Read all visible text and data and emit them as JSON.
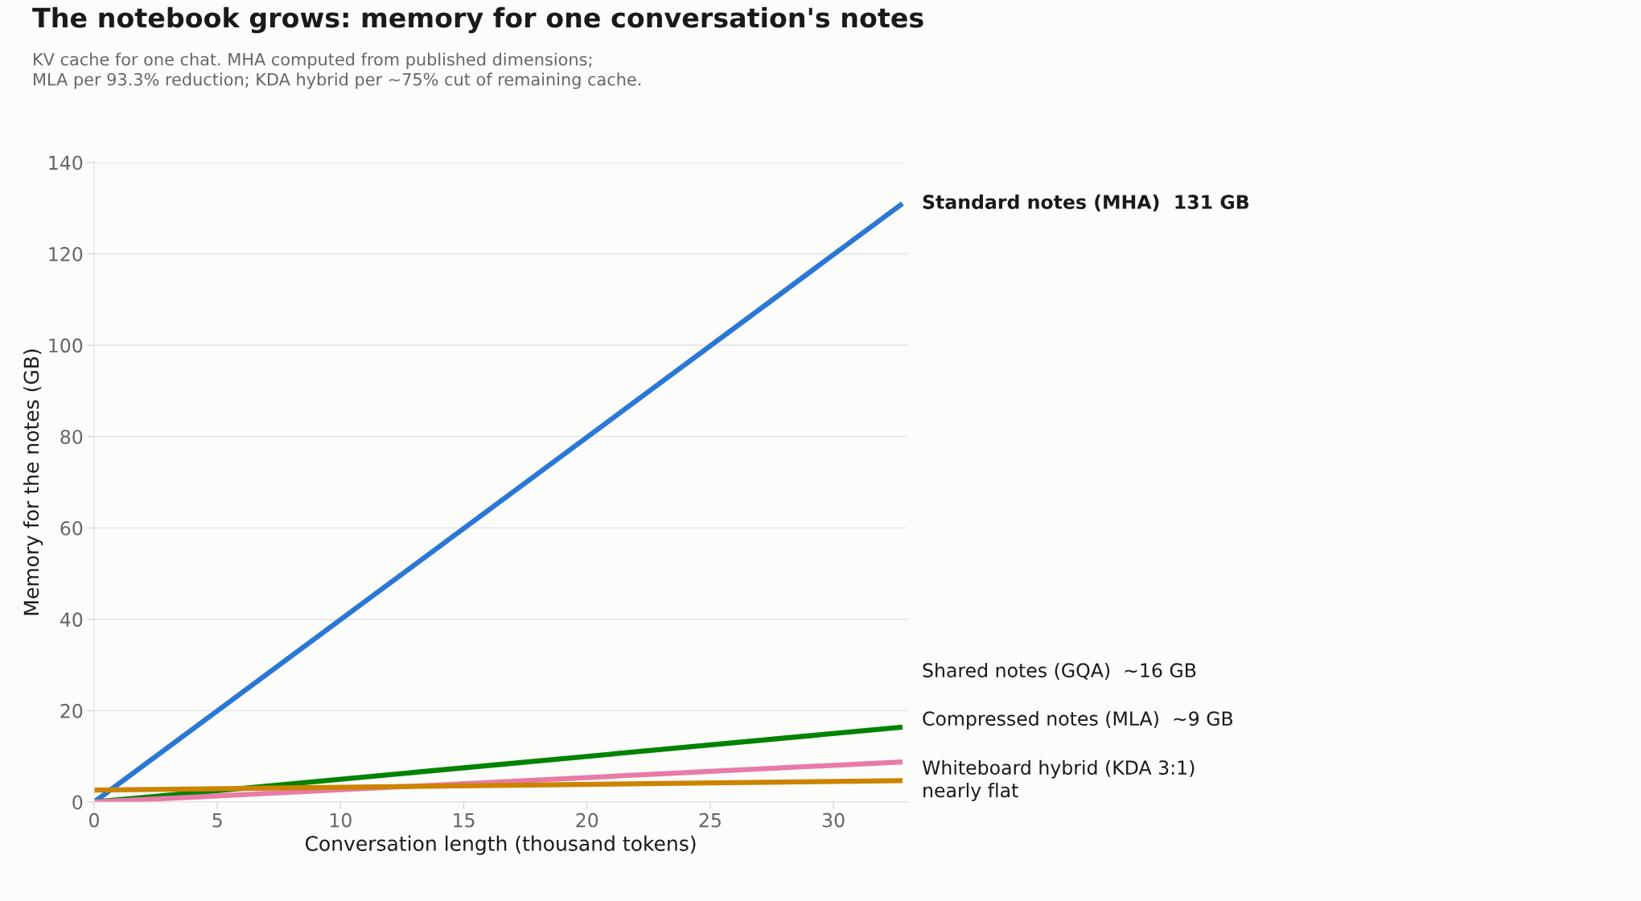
{
  "chart_data": {
    "type": "line",
    "title": "The notebook grows: memory for one conversation's notes",
    "subtitle": "KV cache for one chat. MHA computed from published dimensions;\nMLA per 93.3% reduction; KDA hybrid per ~75% cut of remaining cache.",
    "xlabel": "Conversation length (thousand tokens)",
    "ylabel": "Memory for the notes (GB)",
    "x": [
      0,
      32.8
    ],
    "series": [
      {
        "name": "Standard notes (MHA)  131 GB",
        "color": "#2a78d6",
        "values": [
          0,
          131
        ]
      },
      {
        "name": "Shared notes (GQA)  ~16 GB",
        "color": "#008300",
        "values": [
          0,
          16.4
        ]
      },
      {
        "name": "Compressed notes (MLA)  ~9 GB",
        "color": "#e87ba8",
        "values": [
          0,
          8.8
        ]
      },
      {
        "name": "Whiteboard hybrid (KDA 3:1)\nnearly flat",
        "color": "#cc8400",
        "values": [
          2.6,
          4.7
        ]
      }
    ],
    "xlim": [
      0,
      33
    ],
    "xticks": [
      0,
      5,
      10,
      15,
      20,
      25,
      30
    ],
    "ylim": [
      0,
      140
    ],
    "yticks": [
      0,
      20,
      40,
      60,
      80,
      100,
      120,
      140
    ],
    "grid": "y",
    "legend": "right",
    "marker": "none",
    "line_style": "solid"
  }
}
